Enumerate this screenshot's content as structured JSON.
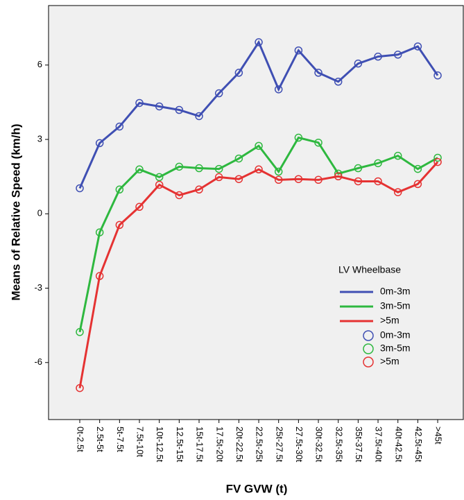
{
  "chart_data": {
    "type": "line",
    "x_label": "FV GVW (t)",
    "y_label": "Means of Relative Speed (km/h)",
    "legend_title": "LV Wheelbase",
    "categories": [
      "0t-2.5t",
      "2.5t-5t",
      "5t-7.5t",
      "7.5t-10t",
      "10t-12.5t",
      "12.5t-15t",
      "15t-17.5t",
      "17.5t-20t",
      "20t-22.5t",
      "22.5t-25t",
      "25t-27.5t",
      "27.5t-30t",
      "30t-32.5t",
      "32.5t-35t",
      "35t-37.5t",
      "37.5t-40t",
      "40t-42.5t",
      "42.5t-45t",
      ">45t"
    ],
    "series": [
      {
        "name": "0m-3m",
        "color": "#3f4fb3",
        "values": [
          1.03,
          2.85,
          3.52,
          4.47,
          4.33,
          4.19,
          3.94,
          4.86,
          5.69,
          6.92,
          5.02,
          6.59,
          5.69,
          5.33,
          6.06,
          6.34,
          6.42,
          6.75,
          5.58
        ]
      },
      {
        "name": "3m-5m",
        "color": "#2eb83f",
        "values": [
          -4.77,
          -0.75,
          0.98,
          1.79,
          1.48,
          1.9,
          1.84,
          1.81,
          2.23,
          2.74,
          1.7,
          3.07,
          2.87,
          1.62,
          1.84,
          2.04,
          2.34,
          1.81,
          2.26
        ]
      },
      {
        "name": ">5m",
        "color": "#e53232",
        "values": [
          -7.03,
          -2.51,
          -0.45,
          0.28,
          1.17,
          0.75,
          0.98,
          1.48,
          1.4,
          1.79,
          1.37,
          1.4,
          1.37,
          1.51,
          1.31,
          1.31,
          0.87,
          1.2,
          2.09
        ]
      }
    ],
    "ylim": [
      -8.3,
      8.4
    ],
    "yticks": [
      -6,
      -3,
      0,
      3,
      6
    ]
  }
}
